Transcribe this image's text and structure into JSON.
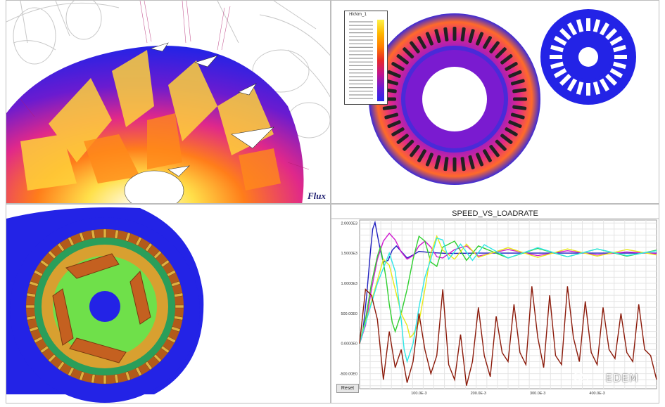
{
  "panels": {
    "top_left": {
      "logo_text": "Flux"
    },
    "top_right": {
      "legend_title": "HkNm_1"
    },
    "bottom_left": {},
    "bottom_right": {
      "title": "SPEED_VS_LOADRATE",
      "reset_label": "Reset",
      "watermark": "EDEM",
      "y_ticks": [
        "2.0000E3",
        "1.5000E3",
        "1.0000E3",
        "500.00E0",
        "0.0000E0",
        "-500.00E0"
      ],
      "x_ticks": [
        "100.0E-3",
        "200.0E-3",
        "300.0E-3",
        "400.0E-3"
      ]
    }
  },
  "chart_data": {
    "type": "line",
    "title": "SPEED_VS_LOADRATE",
    "xlabel": "",
    "ylabel": "",
    "xlim": [
      0,
      0.5
    ],
    "ylim": [
      -750,
      2050
    ],
    "series": [
      {
        "color": "#1f1fbf",
        "x": [
          0,
          0.005,
          0.012,
          0.018,
          0.022,
          0.026,
          0.03,
          0.035,
          0.04,
          0.048,
          0.055,
          0.062,
          0.07,
          0.08,
          0.09,
          0.1,
          0.12,
          0.15,
          0.2,
          0.3,
          0.4,
          0.5
        ],
        "y": [
          0,
          150,
          800,
          1500,
          1900,
          2010,
          1800,
          1550,
          1350,
          1380,
          1550,
          1620,
          1530,
          1420,
          1470,
          1530,
          1510,
          1495,
          1500,
          1500,
          1500,
          1500
        ]
      },
      {
        "color": "#d01bd0",
        "x": [
          0,
          0.01,
          0.02,
          0.03,
          0.04,
          0.05,
          0.06,
          0.07,
          0.08,
          0.09,
          0.1,
          0.11,
          0.12,
          0.13,
          0.14,
          0.16,
          0.18,
          0.2,
          0.25,
          0.3,
          0.35,
          0.4,
          0.45,
          0.5
        ],
        "y": [
          0,
          300,
          900,
          1400,
          1700,
          1830,
          1720,
          1520,
          1400,
          1460,
          1620,
          1700,
          1600,
          1440,
          1420,
          1560,
          1620,
          1450,
          1560,
          1460,
          1540,
          1470,
          1520,
          1490
        ]
      },
      {
        "color": "#2fcf2f",
        "x": [
          0,
          0.01,
          0.02,
          0.03,
          0.035,
          0.04,
          0.045,
          0.05,
          0.055,
          0.06,
          0.07,
          0.08,
          0.09,
          0.1,
          0.11,
          0.12,
          0.13,
          0.14,
          0.16,
          0.18,
          0.2,
          0.25,
          0.3,
          0.35,
          0.4,
          0.45,
          0.5
        ],
        "y": [
          0,
          400,
          1000,
          1450,
          1600,
          1350,
          1050,
          650,
          350,
          200,
          500,
          900,
          1400,
          1780,
          1700,
          1350,
          1280,
          1600,
          1700,
          1380,
          1620,
          1420,
          1580,
          1440,
          1570,
          1450,
          1550
        ]
      },
      {
        "color": "#e8e81a",
        "x": [
          0,
          0.02,
          0.04,
          0.05,
          0.06,
          0.07,
          0.08,
          0.085,
          0.09,
          0.1,
          0.11,
          0.12,
          0.13,
          0.14,
          0.16,
          0.18,
          0.2,
          0.25,
          0.3,
          0.35,
          0.4,
          0.45,
          0.5
        ],
        "y": [
          0,
          700,
          1400,
          1300,
          900,
          500,
          300,
          100,
          150,
          350,
          900,
          1500,
          1780,
          1550,
          1400,
          1650,
          1430,
          1590,
          1430,
          1570,
          1450,
          1560,
          1470
        ]
      },
      {
        "color": "#2ee6e6",
        "x": [
          0,
          0.03,
          0.05,
          0.06,
          0.07,
          0.075,
          0.08,
          0.09,
          0.1,
          0.11,
          0.12,
          0.13,
          0.14,
          0.15,
          0.17,
          0.19,
          0.21,
          0.25,
          0.3,
          0.35,
          0.4,
          0.45,
          0.5
        ],
        "y": [
          0,
          1000,
          1500,
          1200,
          400,
          -100,
          -300,
          0,
          600,
          1100,
          1400,
          1750,
          1720,
          1400,
          1650,
          1380,
          1640,
          1420,
          1590,
          1440,
          1570,
          1460,
          1540
        ]
      },
      {
        "color": "#8b1a0a",
        "x": [
          0,
          0.01,
          0.02,
          0.03,
          0.04,
          0.05,
          0.06,
          0.07,
          0.08,
          0.09,
          0.1,
          0.11,
          0.12,
          0.13,
          0.14,
          0.15,
          0.16,
          0.17,
          0.18,
          0.19,
          0.2,
          0.21,
          0.22,
          0.23,
          0.24,
          0.25,
          0.26,
          0.27,
          0.28,
          0.29,
          0.3,
          0.31,
          0.32,
          0.33,
          0.34,
          0.35,
          0.36,
          0.37,
          0.38,
          0.39,
          0.4,
          0.41,
          0.42,
          0.43,
          0.44,
          0.45,
          0.46,
          0.47,
          0.48,
          0.49,
          0.5
        ],
        "y": [
          0,
          900,
          800,
          400,
          -600,
          200,
          -400,
          -100,
          -650,
          -300,
          500,
          -100,
          -500,
          -200,
          900,
          -350,
          -600,
          150,
          -700,
          -300,
          600,
          -200,
          -550,
          450,
          -150,
          -300,
          650,
          -150,
          -350,
          950,
          100,
          -400,
          800,
          -200,
          -350,
          950,
          100,
          -300,
          700,
          -150,
          -350,
          600,
          -100,
          -250,
          500,
          -150,
          -300,
          650,
          -100,
          -200,
          -600
        ]
      }
    ]
  },
  "colors": {
    "stator_blue": "#2323e6",
    "accent_orange": "#ff9a00",
    "accent_yellow": "#fff23a",
    "hot_pink": "#e0288a"
  }
}
